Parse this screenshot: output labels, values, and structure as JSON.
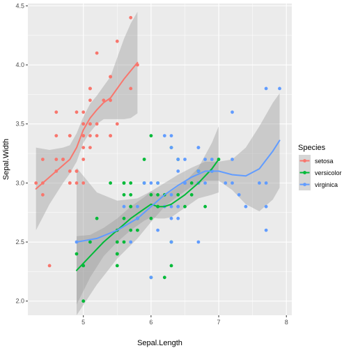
{
  "chart_data": {
    "type": "scatter",
    "xlabel": "Sepal.Length",
    "ylabel": "Sepal.Width",
    "xlim": [
      4.18,
      8.08
    ],
    "ylim": [
      1.88,
      4.52
    ],
    "x_ticks": [
      5,
      6,
      7,
      8
    ],
    "y_ticks": [
      2.0,
      2.5,
      3.0,
      3.5,
      4.0,
      4.5
    ],
    "x_tick_labels": [
      "5",
      "6",
      "7",
      "8"
    ],
    "y_tick_labels": [
      "2.0",
      "2.5",
      "3.0",
      "3.5",
      "4.0",
      "4.5"
    ],
    "grid": true,
    "legend_position": "right",
    "legend": {
      "title": "Species",
      "labels": [
        "setosa",
        "versicolor",
        "virginica"
      ]
    },
    "colors": {
      "panel_bg": "#ebebeb",
      "grid_major": "#ffffff",
      "ribbon": "#999999",
      "setosa": "#f8766d",
      "versicolor": "#00ba38",
      "virginica": "#619cff"
    },
    "series": [
      {
        "name": "setosa",
        "points": [
          [
            5.1,
            3.5
          ],
          [
            4.9,
            3.0
          ],
          [
            4.7,
            3.2
          ],
          [
            4.6,
            3.1
          ],
          [
            5.0,
            3.6
          ],
          [
            5.4,
            3.9
          ],
          [
            4.6,
            3.4
          ],
          [
            5.0,
            3.4
          ],
          [
            4.4,
            2.9
          ],
          [
            4.9,
            3.1
          ],
          [
            5.4,
            3.7
          ],
          [
            4.8,
            3.4
          ],
          [
            4.8,
            3.0
          ],
          [
            4.3,
            3.0
          ],
          [
            5.8,
            4.0
          ],
          [
            5.7,
            4.4
          ],
          [
            5.4,
            3.9
          ],
          [
            5.1,
            3.5
          ],
          [
            5.7,
            3.8
          ],
          [
            5.1,
            3.8
          ],
          [
            5.4,
            3.4
          ],
          [
            5.1,
            3.7
          ],
          [
            4.6,
            3.6
          ],
          [
            5.1,
            3.3
          ],
          [
            4.8,
            3.4
          ],
          [
            5.0,
            3.0
          ],
          [
            5.0,
            3.4
          ],
          [
            5.2,
            3.5
          ],
          [
            5.2,
            3.4
          ],
          [
            4.7,
            3.2
          ],
          [
            4.8,
            3.1
          ],
          [
            5.4,
            3.4
          ],
          [
            5.2,
            4.1
          ],
          [
            5.5,
            4.2
          ],
          [
            4.9,
            3.1
          ],
          [
            5.0,
            3.2
          ],
          [
            5.5,
            3.5
          ],
          [
            4.9,
            3.6
          ],
          [
            4.4,
            3.0
          ],
          [
            5.1,
            3.4
          ],
          [
            5.0,
            3.5
          ],
          [
            4.5,
            2.3
          ],
          [
            4.4,
            3.2
          ],
          [
            5.0,
            3.5
          ],
          [
            5.1,
            3.8
          ],
          [
            4.8,
            3.0
          ],
          [
            5.1,
            3.8
          ],
          [
            4.6,
            3.2
          ],
          [
            5.3,
            3.7
          ],
          [
            5.0,
            3.3
          ]
        ],
        "smooth": [
          [
            4.3,
            2.95
          ],
          [
            4.5,
            3.05
          ],
          [
            4.7,
            3.15
          ],
          [
            4.8,
            3.2
          ],
          [
            4.9,
            3.3
          ],
          [
            5.0,
            3.45
          ],
          [
            5.1,
            3.55
          ],
          [
            5.2,
            3.62
          ],
          [
            5.3,
            3.68
          ],
          [
            5.4,
            3.72
          ],
          [
            5.5,
            3.8
          ],
          [
            5.6,
            3.88
          ],
          [
            5.7,
            3.95
          ],
          [
            5.8,
            4.02
          ]
        ],
        "ribbon_upper": [
          [
            4.3,
            3.3
          ],
          [
            4.5,
            3.28
          ],
          [
            4.7,
            3.3
          ],
          [
            4.8,
            3.32
          ],
          [
            4.9,
            3.42
          ],
          [
            5.0,
            3.56
          ],
          [
            5.1,
            3.67
          ],
          [
            5.2,
            3.74
          ],
          [
            5.3,
            3.82
          ],
          [
            5.4,
            3.9
          ],
          [
            5.5,
            4.06
          ],
          [
            5.6,
            4.22
          ],
          [
            5.7,
            4.35
          ],
          [
            5.8,
            4.45
          ]
        ],
        "ribbon_lower": [
          [
            4.3,
            2.6
          ],
          [
            4.5,
            2.82
          ],
          [
            4.7,
            3.0
          ],
          [
            4.8,
            3.08
          ],
          [
            4.9,
            3.18
          ],
          [
            5.0,
            3.34
          ],
          [
            5.1,
            3.43
          ],
          [
            5.2,
            3.5
          ],
          [
            5.3,
            3.54
          ],
          [
            5.4,
            3.54
          ],
          [
            5.5,
            3.54
          ],
          [
            5.6,
            3.54
          ],
          [
            5.7,
            3.55
          ],
          [
            5.8,
            3.59
          ]
        ]
      },
      {
        "name": "versicolor",
        "points": [
          [
            7.0,
            3.2
          ],
          [
            6.4,
            3.2
          ],
          [
            6.9,
            3.1
          ],
          [
            5.5,
            2.3
          ],
          [
            6.5,
            2.8
          ],
          [
            5.7,
            2.8
          ],
          [
            6.3,
            3.3
          ],
          [
            4.9,
            2.4
          ],
          [
            6.6,
            2.9
          ],
          [
            5.2,
            2.7
          ],
          [
            5.0,
            2.0
          ],
          [
            5.9,
            3.0
          ],
          [
            6.0,
            2.2
          ],
          [
            6.1,
            2.9
          ],
          [
            5.6,
            2.9
          ],
          [
            6.7,
            3.1
          ],
          [
            5.6,
            3.0
          ],
          [
            5.8,
            2.7
          ],
          [
            6.2,
            2.2
          ],
          [
            5.6,
            2.5
          ],
          [
            5.9,
            3.2
          ],
          [
            6.1,
            2.8
          ],
          [
            6.3,
            2.5
          ],
          [
            6.1,
            2.8
          ],
          [
            6.4,
            2.9
          ],
          [
            6.6,
            3.0
          ],
          [
            6.8,
            2.8
          ],
          [
            6.7,
            3.0
          ],
          [
            6.0,
            2.9
          ],
          [
            5.7,
            2.6
          ],
          [
            5.5,
            2.4
          ],
          [
            5.5,
            2.4
          ],
          [
            5.8,
            2.7
          ],
          [
            6.0,
            2.7
          ],
          [
            5.4,
            3.0
          ],
          [
            6.0,
            3.4
          ],
          [
            6.7,
            3.1
          ],
          [
            6.3,
            2.3
          ],
          [
            5.6,
            3.0
          ],
          [
            5.5,
            2.5
          ],
          [
            5.5,
            2.6
          ],
          [
            6.1,
            3.0
          ],
          [
            5.8,
            2.6
          ],
          [
            5.0,
            2.3
          ],
          [
            5.6,
            2.7
          ],
          [
            5.7,
            3.0
          ],
          [
            5.7,
            2.9
          ],
          [
            6.2,
            2.9
          ],
          [
            5.1,
            2.5
          ],
          [
            5.7,
            2.8
          ]
        ],
        "smooth": [
          [
            4.9,
            2.26
          ],
          [
            5.1,
            2.38
          ],
          [
            5.3,
            2.5
          ],
          [
            5.5,
            2.6
          ],
          [
            5.7,
            2.7
          ],
          [
            5.9,
            2.78
          ],
          [
            6.0,
            2.82
          ],
          [
            6.1,
            2.8
          ],
          [
            6.2,
            2.8
          ],
          [
            6.3,
            2.82
          ],
          [
            6.5,
            2.9
          ],
          [
            6.7,
            3.0
          ],
          [
            6.9,
            3.12
          ],
          [
            7.0,
            3.2
          ]
        ],
        "ribbon_upper": [
          [
            4.9,
            2.55
          ],
          [
            5.1,
            2.56
          ],
          [
            5.3,
            2.62
          ],
          [
            5.5,
            2.7
          ],
          [
            5.7,
            2.8
          ],
          [
            5.9,
            2.88
          ],
          [
            6.0,
            2.93
          ],
          [
            6.1,
            2.9
          ],
          [
            6.2,
            2.9
          ],
          [
            6.3,
            2.93
          ],
          [
            6.5,
            3.01
          ],
          [
            6.7,
            3.13
          ],
          [
            6.9,
            3.34
          ],
          [
            7.0,
            3.48
          ]
        ],
        "ribbon_lower": [
          [
            4.9,
            1.97
          ],
          [
            5.1,
            2.2
          ],
          [
            5.3,
            2.38
          ],
          [
            5.5,
            2.5
          ],
          [
            5.7,
            2.6
          ],
          [
            5.9,
            2.68
          ],
          [
            6.0,
            2.71
          ],
          [
            6.1,
            2.7
          ],
          [
            6.2,
            2.7
          ],
          [
            6.3,
            2.71
          ],
          [
            6.5,
            2.79
          ],
          [
            6.7,
            2.87
          ],
          [
            6.9,
            2.9
          ],
          [
            7.0,
            2.92
          ]
        ]
      },
      {
        "name": "virginica",
        "points": [
          [
            6.3,
            3.3
          ],
          [
            5.8,
            2.7
          ],
          [
            7.1,
            3.0
          ],
          [
            6.3,
            2.9
          ],
          [
            6.5,
            3.0
          ],
          [
            7.6,
            3.0
          ],
          [
            4.9,
            2.5
          ],
          [
            7.3,
            2.9
          ],
          [
            6.7,
            2.5
          ],
          [
            7.2,
            3.6
          ],
          [
            6.5,
            3.2
          ],
          [
            6.4,
            2.7
          ],
          [
            6.8,
            3.0
          ],
          [
            5.7,
            2.5
          ],
          [
            5.8,
            2.8
          ],
          [
            6.4,
            3.2
          ],
          [
            6.5,
            3.0
          ],
          [
            7.7,
            3.8
          ],
          [
            7.7,
            2.6
          ],
          [
            6.0,
            2.2
          ],
          [
            6.9,
            3.2
          ],
          [
            5.6,
            2.8
          ],
          [
            7.7,
            2.8
          ],
          [
            6.3,
            2.7
          ],
          [
            6.7,
            3.3
          ],
          [
            7.2,
            3.2
          ],
          [
            6.2,
            2.8
          ],
          [
            6.1,
            3.0
          ],
          [
            6.4,
            2.8
          ],
          [
            7.2,
            3.0
          ],
          [
            7.4,
            2.8
          ],
          [
            7.9,
            3.8
          ],
          [
            6.4,
            2.8
          ],
          [
            6.3,
            2.8
          ],
          [
            6.1,
            2.6
          ],
          [
            7.7,
            3.0
          ],
          [
            6.3,
            3.4
          ],
          [
            6.4,
            3.1
          ],
          [
            6.0,
            3.0
          ],
          [
            6.9,
            3.1
          ],
          [
            6.7,
            3.1
          ],
          [
            6.9,
            3.1
          ],
          [
            5.8,
            2.7
          ],
          [
            6.8,
            3.2
          ],
          [
            6.7,
            3.3
          ],
          [
            6.7,
            3.0
          ],
          [
            6.3,
            2.5
          ],
          [
            6.5,
            3.0
          ],
          [
            6.2,
            3.4
          ],
          [
            5.9,
            3.0
          ]
        ],
        "smooth": [
          [
            4.9,
            2.5
          ],
          [
            5.2,
            2.53
          ],
          [
            5.5,
            2.6
          ],
          [
            5.8,
            2.7
          ],
          [
            6.0,
            2.8
          ],
          [
            6.2,
            2.9
          ],
          [
            6.4,
            2.98
          ],
          [
            6.6,
            3.05
          ],
          [
            6.8,
            3.1
          ],
          [
            7.0,
            3.1
          ],
          [
            7.2,
            3.07
          ],
          [
            7.4,
            3.06
          ],
          [
            7.6,
            3.12
          ],
          [
            7.8,
            3.27
          ],
          [
            7.9,
            3.36
          ]
        ],
        "ribbon_upper": [
          [
            4.9,
            3.13
          ],
          [
            5.2,
            2.92
          ],
          [
            5.5,
            2.85
          ],
          [
            5.8,
            2.87
          ],
          [
            6.0,
            2.93
          ],
          [
            6.2,
            3.0
          ],
          [
            6.4,
            3.07
          ],
          [
            6.6,
            3.13
          ],
          [
            6.8,
            3.18
          ],
          [
            7.0,
            3.18
          ],
          [
            7.2,
            3.2
          ],
          [
            7.4,
            3.3
          ],
          [
            7.6,
            3.48
          ],
          [
            7.8,
            3.68
          ],
          [
            7.9,
            3.76
          ]
        ],
        "ribbon_lower": [
          [
            4.9,
            1.88
          ],
          [
            5.2,
            2.14
          ],
          [
            5.5,
            2.36
          ],
          [
            5.8,
            2.53
          ],
          [
            6.0,
            2.67
          ],
          [
            6.2,
            2.8
          ],
          [
            6.4,
            2.89
          ],
          [
            6.6,
            2.97
          ],
          [
            6.8,
            3.02
          ],
          [
            7.0,
            3.02
          ],
          [
            7.2,
            2.94
          ],
          [
            7.4,
            2.82
          ],
          [
            7.6,
            2.76
          ],
          [
            7.8,
            2.86
          ],
          [
            7.9,
            2.96
          ]
        ]
      }
    ]
  }
}
